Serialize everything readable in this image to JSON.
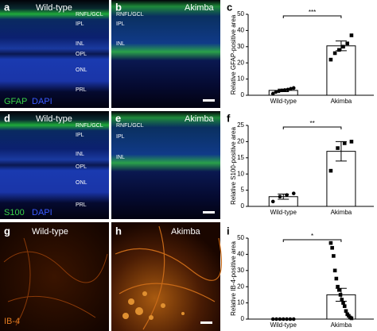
{
  "panels": [
    {
      "letter": "a",
      "title": "Wild-type",
      "layers": [
        "RNFL/GCL",
        "IPL",
        "INL",
        "OPL",
        "ONL",
        "PRL"
      ],
      "stain": [
        "GFAP",
        "DAPI"
      ]
    },
    {
      "letter": "b",
      "title": "Akimba",
      "layers": [
        "RNFL/GCL",
        "IPL",
        "INL"
      ]
    },
    {
      "letter": "d",
      "title": "Wild-type",
      "layers": [
        "RNFL/GCL",
        "IPL",
        "INL",
        "OPL",
        "ONL",
        "PRL"
      ],
      "stain": [
        "S100",
        "DAPI"
      ]
    },
    {
      "letter": "e",
      "title": "Akimba",
      "layers": [
        "RNFL/GCL",
        "IPL",
        "INL"
      ]
    },
    {
      "letter": "g",
      "title": "Wild-type",
      "stain": [
        "IB-4"
      ]
    },
    {
      "letter": "h",
      "title": "Akimba"
    }
  ],
  "chart_data": [
    {
      "type": "bar",
      "letter": "c",
      "ylabel": "Relative GFAP-positive area",
      "categories": [
        "Wild-type",
        "Akimba"
      ],
      "values": [
        3,
        30.5
      ],
      "errors": [
        0.8,
        3
      ],
      "significance": "***",
      "points": [
        [
          1,
          2,
          2.5,
          3,
          3.2,
          3.5,
          4,
          4.5
        ],
        [
          22,
          26,
          28,
          30,
          32,
          37
        ]
      ],
      "ylim": [
        0,
        50
      ],
      "yticks": [
        0,
        10,
        20,
        30,
        40,
        50
      ]
    },
    {
      "type": "bar",
      "letter": "f",
      "ylabel": "Relative S100-positive area",
      "categories": [
        "Wild-type",
        "Akimba"
      ],
      "values": [
        3,
        17
      ],
      "errors": [
        0.8,
        3
      ],
      "significance": "**",
      "points": [
        [
          1.5,
          3,
          3.5,
          4
        ],
        [
          11,
          18,
          19.5,
          20
        ]
      ],
      "ylim": [
        0,
        25
      ],
      "yticks": [
        0,
        5,
        10,
        15,
        20,
        25
      ]
    },
    {
      "type": "bar",
      "letter": "i",
      "ylabel": "Relative IB-4-positive area",
      "categories": [
        "Wild-type",
        "Akimba"
      ],
      "values": [
        0,
        15
      ],
      "errors": [
        0,
        4
      ],
      "significance": "*",
      "points": [
        [
          0,
          0,
          0,
          0,
          0,
          0,
          0
        ],
        [
          47,
          44,
          39,
          30,
          25,
          20,
          18,
          15,
          12,
          10,
          8,
          5,
          3,
          2,
          1,
          0.5
        ]
      ],
      "ylim": [
        0,
        50
      ],
      "yticks": [
        0,
        10,
        20,
        30,
        40,
        50
      ]
    }
  ]
}
